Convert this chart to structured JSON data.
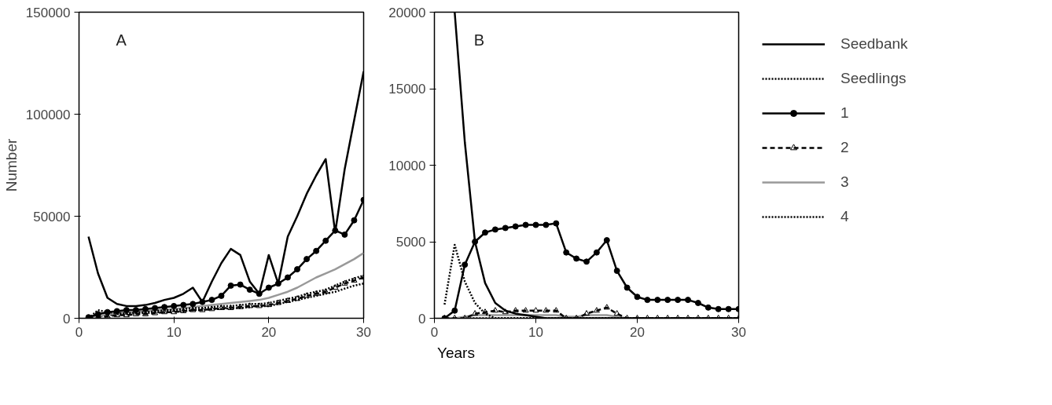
{
  "chart_data": [
    {
      "type": "line",
      "xlabel": "Years",
      "ylabel": "Number",
      "annotations": [
        "A"
      ],
      "x": [
        1,
        2,
        3,
        4,
        5,
        6,
        7,
        8,
        9,
        10,
        11,
        12,
        13,
        14,
        15,
        16,
        17,
        18,
        19,
        20,
        21,
        22,
        23,
        24,
        25,
        26,
        27,
        28,
        29,
        30
      ],
      "xlim": [
        0,
        30
      ],
      "xticks": [
        0,
        10,
        20,
        30
      ],
      "ylim": [
        0,
        150000
      ],
      "yticks": [
        0,
        50000,
        100000,
        150000
      ],
      "grid": false,
      "legend": false,
      "series": [
        {
          "color": "#000000",
          "line_style": "solid",
          "marker": "none",
          "values": [
            40000,
            22000,
            10000,
            7000,
            6000,
            6000,
            6500,
            7500,
            9000,
            10000,
            12000,
            15000,
            8000,
            18000,
            27000,
            34000,
            31000,
            18000,
            12000,
            31000,
            17000,
            40000,
            50000,
            61000,
            70000,
            78000,
            42000,
            73000,
            97000,
            121000
          ]
        },
        {
          "color": "#000000",
          "line_style": "dotted",
          "marker": "none",
          "values": [
            0,
            4000,
            3000,
            2500,
            2500,
            3000,
            3000,
            3500,
            4000,
            4000,
            4500,
            5000,
            5000,
            5500,
            6000,
            6000,
            6500,
            7000,
            7000,
            7500,
            8500,
            9500,
            10500,
            12000,
            13000,
            14000,
            16000,
            18000,
            19500,
            21000
          ]
        },
        {
          "color": "#000000",
          "line_style": "solid",
          "marker": "circle",
          "values": [
            500,
            2000,
            3000,
            3500,
            4000,
            4000,
            4500,
            5000,
            5500,
            6000,
            6500,
            7000,
            8000,
            9000,
            11000,
            16000,
            16500,
            14000,
            12000,
            15000,
            17000,
            20000,
            24000,
            29000,
            33000,
            38000,
            43000,
            41000,
            48000,
            58000
          ]
        },
        {
          "color": "#000000",
          "line_style": "dashed",
          "marker": "triangle",
          "values": [
            0,
            500,
            1000,
            1500,
            1500,
            2000,
            2000,
            2500,
            3000,
            3000,
            3500,
            4000,
            4000,
            4500,
            5000,
            5000,
            5500,
            6000,
            6000,
            6500,
            7500,
            8500,
            9500,
            11000,
            12000,
            13000,
            15000,
            17000,
            18500,
            20000
          ]
        },
        {
          "color": "#999999",
          "line_style": "solid",
          "marker": "none",
          "values": [
            200,
            1000,
            2000,
            2500,
            3000,
            3000,
            3500,
            4000,
            4000,
            4500,
            5000,
            5500,
            6000,
            6500,
            7000,
            7500,
            8000,
            8500,
            9000,
            10000,
            11500,
            13000,
            15000,
            17500,
            20000,
            22000,
            24000,
            26500,
            29000,
            32000
          ]
        },
        {
          "color": "#000000",
          "line_style": "dotted",
          "marker": "none",
          "values": [
            500,
            1000,
            1500,
            2000,
            2000,
            2500,
            2500,
            3000,
            3000,
            3500,
            3500,
            4000,
            4000,
            4500,
            4500,
            5000,
            5000,
            5500,
            6000,
            6000,
            7000,
            8000,
            9000,
            10000,
            11000,
            12000,
            13000,
            14500,
            16000,
            17000
          ]
        }
      ]
    },
    {
      "type": "line",
      "annotations": [
        "B"
      ],
      "x": [
        1,
        2,
        3,
        4,
        5,
        6,
        7,
        8,
        9,
        10,
        11,
        12,
        13,
        14,
        15,
        16,
        17,
        18,
        19,
        20,
        21,
        22,
        23,
        24,
        25,
        26,
        27,
        28,
        29,
        30
      ],
      "xlim": [
        0,
        30
      ],
      "xticks": [
        0,
        10,
        20,
        30
      ],
      "ylim": [
        0,
        20000
      ],
      "yticks": [
        0,
        5000,
        10000,
        15000,
        20000
      ],
      "grid": false,
      "legend": "right",
      "series": [
        {
          "name": "Seedbank",
          "color": "#000000",
          "line_style": "solid",
          "marker": "none",
          "values": [
            null,
            20000,
            11500,
            5000,
            2300,
            1000,
            500,
            300,
            200,
            100,
            0,
            0,
            0,
            0,
            0,
            0,
            0,
            0,
            0,
            0,
            0,
            0,
            0,
            0,
            0,
            0,
            0,
            0,
            0,
            0
          ]
        },
        {
          "name": "Seedlings",
          "color": "#000000",
          "line_style": "dotted",
          "marker": "none",
          "values": [
            900,
            4800,
            2400,
            1000,
            300,
            0,
            0,
            0,
            0,
            0,
            0,
            0,
            0,
            0,
            0,
            0,
            0,
            0,
            0,
            0,
            0,
            0,
            0,
            0,
            0,
            0,
            0,
            0,
            0,
            0
          ]
        },
        {
          "name": "1",
          "color": "#000000",
          "line_style": "solid",
          "marker": "circle",
          "values": [
            0,
            500,
            3500,
            5000,
            5600,
            5800,
            5900,
            6000,
            6100,
            6100,
            6100,
            6200,
            4300,
            3900,
            3700,
            4300,
            5100,
            3100,
            2000,
            1400,
            1200,
            1200,
            1200,
            1200,
            1200,
            1000,
            700,
            600,
            600,
            600
          ]
        },
        {
          "name": "2",
          "color": "#000000",
          "line_style": "dashed",
          "marker": "triangle",
          "values": [
            0,
            0,
            0,
            300,
            400,
            500,
            400,
            500,
            500,
            500,
            500,
            500,
            0,
            0,
            300,
            500,
            700,
            300,
            0,
            0,
            0,
            0,
            0,
            0,
            0,
            0,
            0,
            0,
            0,
            0
          ]
        },
        {
          "name": "3",
          "color": "#999999",
          "line_style": "solid",
          "marker": "none",
          "values": [
            0,
            0,
            100,
            200,
            200,
            200,
            200,
            200,
            200,
            200,
            200,
            200,
            100,
            100,
            200,
            200,
            200,
            100,
            0,
            0,
            0,
            0,
            0,
            0,
            0,
            0,
            0,
            0,
            0,
            0
          ]
        },
        {
          "name": "4",
          "color": "#000000",
          "line_style": "dotted",
          "marker": "none",
          "values": [
            0,
            0,
            0,
            0,
            0,
            0,
            0,
            0,
            0,
            0,
            0,
            0,
            0,
            0,
            0,
            0,
            0,
            0,
            0,
            0,
            0,
            0,
            0,
            0,
            0,
            0,
            0,
            0,
            0,
            0
          ]
        }
      ]
    }
  ]
}
